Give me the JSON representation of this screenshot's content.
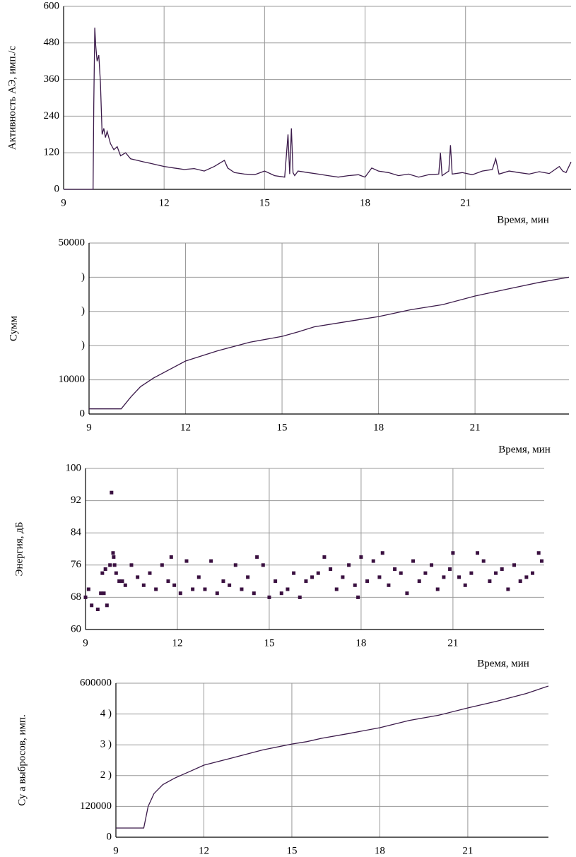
{
  "chart_data": [
    {
      "type": "line",
      "y_label": "Активность АЭ, имп./с",
      "x_label": "Время, мин",
      "color": "#3b1a4a",
      "grid": true,
      "xlim": [
        9,
        24.15
      ],
      "xticks": [
        9,
        12,
        15,
        18,
        21
      ],
      "ylim": [
        0,
        600
      ],
      "yticks": [
        0,
        120,
        240,
        360,
        480,
        600
      ],
      "x": [
        9,
        9.88,
        9.9,
        9.93,
        9.96,
        10.0,
        10.05,
        10.1,
        10.15,
        10.2,
        10.25,
        10.3,
        10.4,
        10.5,
        10.6,
        10.7,
        10.85,
        11.0,
        11.2,
        11.4,
        11.6,
        11.8,
        12.0,
        12.3,
        12.6,
        12.9,
        13.2,
        13.5,
        13.8,
        13.9,
        14.1,
        14.4,
        14.7,
        15.0,
        15.3,
        15.6,
        15.7,
        15.75,
        15.8,
        15.85,
        15.9,
        16.0,
        16.3,
        16.6,
        16.9,
        17.2,
        17.5,
        17.8,
        18.0,
        18.2,
        18.4,
        18.7,
        19.0,
        19.3,
        19.6,
        19.9,
        20.2,
        20.25,
        20.3,
        20.5,
        20.55,
        20.6,
        20.9,
        21.2,
        21.5,
        21.8,
        21.9,
        22.0,
        22.3,
        22.6,
        22.9,
        23.2,
        23.5,
        23.8,
        23.9,
        24.0,
        24.15
      ],
      "values": [
        0,
        0,
        280,
        530,
        470,
        420,
        440,
        350,
        180,
        200,
        170,
        190,
        150,
        130,
        140,
        110,
        120,
        100,
        95,
        90,
        85,
        80,
        75,
        70,
        65,
        68,
        60,
        75,
        95,
        70,
        55,
        50,
        48,
        60,
        45,
        40,
        180,
        50,
        200,
        55,
        45,
        60,
        55,
        50,
        45,
        40,
        45,
        48,
        40,
        70,
        60,
        55,
        45,
        50,
        40,
        48,
        50,
        120,
        45,
        60,
        145,
        50,
        55,
        48,
        60,
        65,
        100,
        50,
        60,
        55,
        50,
        58,
        52,
        75,
        60,
        55,
        90
      ]
    },
    {
      "type": "line",
      "y_label": "Сумм",
      "x_label": "Время, мин",
      "color": "#3b1a4a",
      "grid": true,
      "xlim": [
        9,
        23.92
      ],
      "xticks": [
        9,
        12,
        15,
        18,
        21
      ],
      "ylim": [
        0,
        50000
      ],
      "yticks": [
        0,
        {
          "value": 10000,
          "label": "10000"
        },
        {
          "value": 20000,
          "label": ")"
        },
        {
          "value": 30000,
          "label": ")"
        },
        {
          "value": 40000,
          "label": ")"
        },
        {
          "value": 50000,
          "label": "50000"
        }
      ],
      "x": [
        9,
        10.0,
        10.3,
        10.6,
        11,
        11.5,
        12,
        13,
        14,
        15,
        15.5,
        16,
        17,
        18,
        19,
        20,
        21,
        22,
        23,
        23.92
      ],
      "values": [
        1500,
        1500,
        5000,
        8000,
        10500,
        13000,
        15500,
        18500,
        21000,
        22700,
        24000,
        25500,
        27000,
        28500,
        30500,
        32000,
        34500,
        36500,
        38500,
        40000
      ]
    },
    {
      "type": "scatter",
      "y_label": "Энергия, дБ",
      "x_label": "Время, мин",
      "color": "#3a1040",
      "grid": true,
      "xlim": [
        9,
        23.98
      ],
      "xticks": [
        9,
        12,
        15,
        18,
        21
      ],
      "ylim": [
        60,
        100
      ],
      "yticks": [
        60,
        68,
        76,
        84,
        92,
        100
      ],
      "x": [
        9.0,
        9.1,
        9.2,
        9.4,
        9.5,
        9.55,
        9.6,
        9.65,
        9.7,
        9.8,
        9.85,
        9.9,
        9.92,
        9.95,
        10.0,
        10.1,
        10.2,
        10.3,
        10.5,
        10.7,
        10.9,
        11.1,
        11.3,
        11.5,
        11.7,
        11.8,
        11.9,
        12.1,
        12.3,
        12.5,
        12.7,
        12.9,
        13.1,
        13.3,
        13.5,
        13.7,
        13.9,
        14.1,
        14.3,
        14.5,
        14.6,
        14.8,
        15.0,
        15.2,
        15.4,
        15.6,
        15.8,
        16.0,
        16.2,
        16.4,
        16.6,
        16.8,
        17.0,
        17.2,
        17.4,
        17.6,
        17.8,
        17.9,
        18.0,
        18.2,
        18.4,
        18.6,
        18.7,
        18.9,
        19.1,
        19.3,
        19.5,
        19.7,
        19.9,
        20.1,
        20.3,
        20.5,
        20.7,
        20.9,
        21.0,
        21.2,
        21.4,
        21.6,
        21.8,
        22.0,
        22.2,
        22.4,
        22.6,
        22.8,
        23.0,
        23.2,
        23.4,
        23.6,
        23.8,
        23.9
      ],
      "values": [
        68,
        70,
        66,
        65,
        69,
        74,
        69,
        75,
        66,
        76,
        94,
        79,
        78,
        76,
        74,
        72,
        72,
        71,
        76,
        73,
        71,
        74,
        70,
        76,
        72,
        78,
        71,
        69,
        77,
        70,
        73,
        70,
        77,
        69,
        72,
        71,
        76,
        70,
        73,
        69,
        78,
        76,
        68,
        72,
        69,
        70,
        74,
        68,
        72,
        73,
        74,
        78,
        75,
        70,
        73,
        76,
        71,
        68,
        78,
        72,
        77,
        73,
        79,
        71,
        75,
        74,
        69,
        77,
        72,
        74,
        76,
        70,
        73,
        75,
        79,
        73,
        71,
        74,
        79,
        77,
        72,
        74,
        75,
        70,
        76,
        72,
        73,
        74,
        79,
        77
      ]
    },
    {
      "type": "line",
      "y_label": "Су  а выбросов, имп.",
      "color": "#3b1a4a",
      "grid": true,
      "xlim": [
        9,
        23.75
      ],
      "xticks": [
        9,
        12,
        15,
        18,
        21
      ],
      "ylim": [
        0,
        600000
      ],
      "yticks": [
        0,
        {
          "value": 120000,
          "label": "120000"
        },
        {
          "value": 240000,
          "label": "2  )"
        },
        {
          "value": 360000,
          "label": "3  )"
        },
        {
          "value": 480000,
          "label": "4  )"
        },
        {
          "value": 600000,
          "label": "600000"
        }
      ],
      "x": [
        9,
        9.95,
        10.1,
        10.3,
        10.6,
        11,
        11.5,
        12,
        13,
        14,
        15,
        15.5,
        16,
        17,
        18,
        19,
        20,
        21,
        22,
        23,
        23.75
      ],
      "values": [
        35800,
        35800,
        120000,
        170000,
        205000,
        230000,
        255000,
        280700,
        310000,
        340000,
        363000,
        372000,
        385000,
        405000,
        426600,
        455000,
        475000,
        503700,
        530000,
        560000,
        589000
      ]
    }
  ]
}
